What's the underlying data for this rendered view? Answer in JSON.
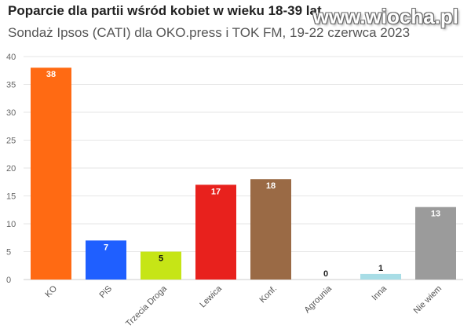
{
  "header": {
    "title": "Poparcie dla partii wśród kobiet w wieku 18-39 lat",
    "subtitle": "Sondaż Ipsos (CATI) dla OKO.press i TOK FM, 19-22 czerwca 2023",
    "watermark": "www.wiocha.pl"
  },
  "chart_data": {
    "type": "bar",
    "title": "Poparcie dla partii wśród kobiet w wieku 18-39 lat",
    "subtitle": "Sondaż Ipsos (CATI) dla OKO.press i TOK FM, 19-22 czerwca 2023",
    "xlabel": "",
    "ylabel": "",
    "ylim": [
      0,
      40
    ],
    "yticks": [
      0,
      5,
      10,
      15,
      20,
      25,
      30,
      35,
      40
    ],
    "grid": true,
    "legend": "none",
    "categories": [
      "KO",
      "PiS",
      "Trzecia Droga",
      "Lewica",
      "Konf.",
      "Agrounia",
      "Inna",
      "Nie wiem"
    ],
    "values": [
      38,
      7,
      5,
      17,
      18,
      0,
      1,
      13
    ],
    "colors": [
      "#ff6a13",
      "#1f5fff",
      "#c6e516",
      "#e8211d",
      "#9a6a45",
      "#8a8a8a",
      "#a8dde6",
      "#9b9b9b"
    ],
    "label_colors": [
      "#ffffff",
      "#ffffff",
      "#111111",
      "#ffffff",
      "#ffffff",
      "#222222",
      "#222222",
      "#ffffff"
    ]
  }
}
